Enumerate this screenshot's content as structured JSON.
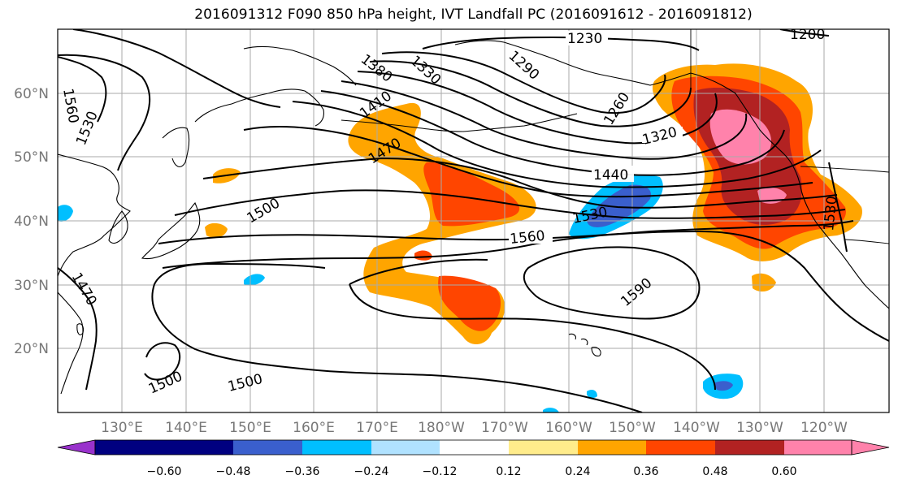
{
  "title": "2016091312 F090 850 hPa height, IVT Landfall PC (2016091612 - 2016091812)",
  "lat_labels": [
    "60°N",
    "50°N",
    "40°N",
    "30°N",
    "20°N"
  ],
  "lon_labels": [
    "130°E",
    "140°E",
    "150°E",
    "160°E",
    "170°E",
    "180°W",
    "170°W",
    "160°W",
    "150°W",
    "140°W",
    "130°W",
    "120°W"
  ],
  "contour_labels": [
    "1230",
    "1290",
    "1260",
    "1320",
    "1330",
    "1380",
    "1410",
    "1440",
    "1470",
    "1500",
    "1530",
    "1560",
    "1590",
    "1560",
    "1530",
    "1500",
    "1500",
    "1470",
    "1530",
    "1200"
  ],
  "colorbar": {
    "ticks": [
      "−0.60",
      "−0.48",
      "−0.36",
      "−0.24",
      "−0.12",
      "0.12",
      "0.24",
      "0.36",
      "0.48",
      "0.60"
    ],
    "colors": [
      "#9932cc",
      "#000080",
      "#3a5fcd",
      "#00bfff",
      "#b0e2ff",
      "#ffffff",
      "#ffec8b",
      "#ffa500",
      "#ff4500",
      "#b22222",
      "#ff82ab"
    ],
    "extend": "both"
  },
  "colors": {
    "c_0_24": "#ffa500",
    "c_0_36": "#ff4500",
    "c_0_48": "#b22222",
    "c_0_60": "#ff82ab",
    "c_0_12": "#ffec8b",
    "c_m0_24": "#00bfff",
    "c_m0_36": "#3a5fcd",
    "gridline": "#aaaaaa",
    "axis_label": "#777777"
  }
}
